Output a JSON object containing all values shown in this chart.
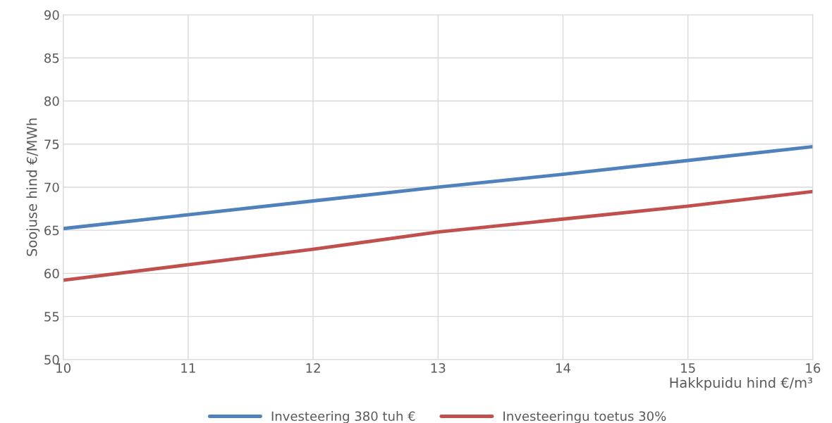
{
  "chart_data": {
    "type": "line",
    "xlabel": "Hakkpuidu hind €/m³",
    "ylabel": "Soojuse hind €/MWh",
    "x": [
      10,
      11,
      12,
      13,
      14,
      15,
      16
    ],
    "series": [
      {
        "name": "Investeering 380 tuh €",
        "color": "#4f81bd",
        "values": [
          65.2,
          66.8,
          68.4,
          70.0,
          71.5,
          73.1,
          74.7
        ]
      },
      {
        "name": "Investeeringu toetus 30%",
        "color": "#c0504d",
        "values": [
          59.2,
          61.0,
          62.8,
          64.8,
          66.3,
          67.8,
          69.5
        ]
      }
    ],
    "xlim": [
      10,
      16
    ],
    "xticks": [
      10,
      11,
      12,
      13,
      14,
      15,
      16
    ],
    "ylim": [
      50,
      90
    ],
    "yticks": [
      50,
      55,
      60,
      65,
      70,
      75,
      80,
      85,
      90
    ],
    "grid": true,
    "legend": "bottom",
    "marker": "none",
    "line_style": "solid"
  }
}
